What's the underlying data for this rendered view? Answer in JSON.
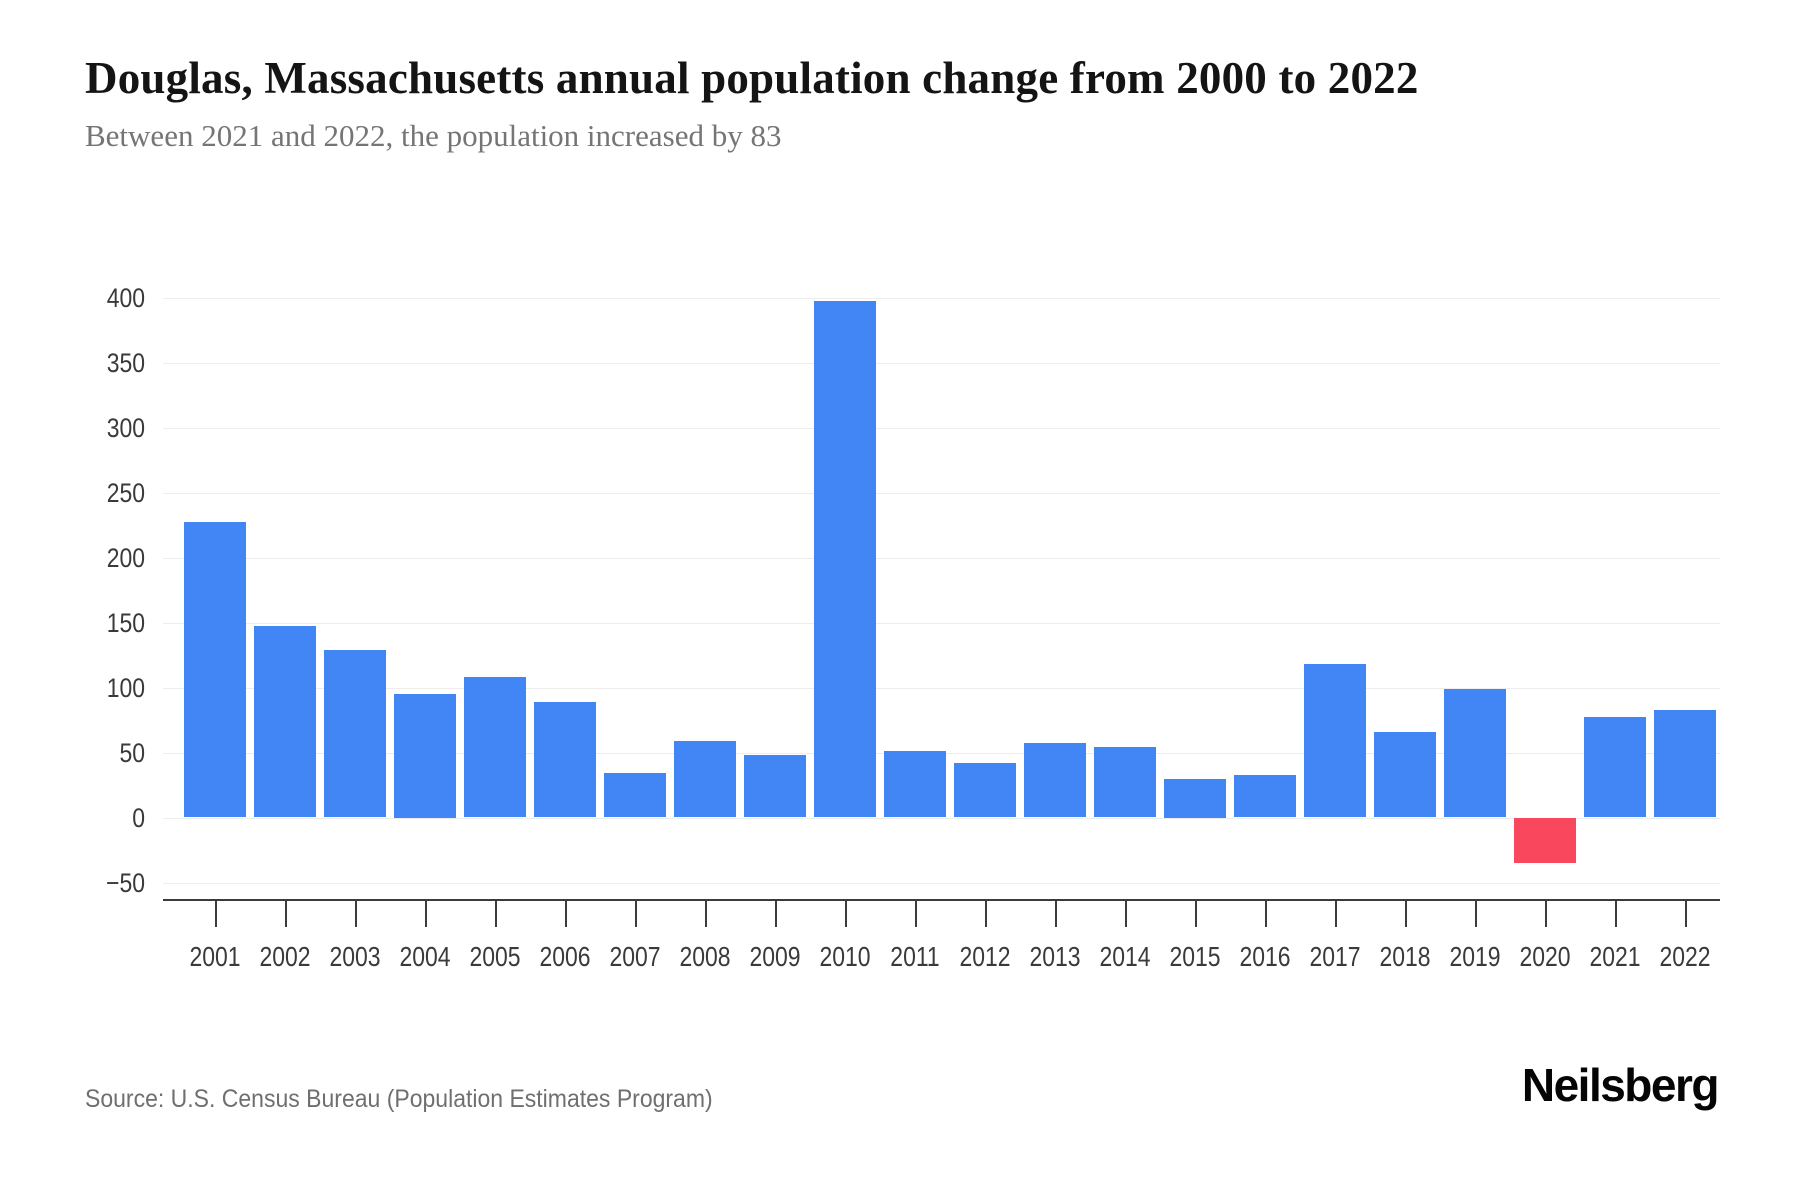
{
  "header": {
    "title": "Douglas, Massachusetts annual population change from 2000 to 2022",
    "subtitle": "Between 2021 and 2022, the population increased by 83"
  },
  "footer": {
    "source": "Source: U.S. Census Bureau (Population Estimates Program)",
    "brand": "Neilsberg"
  },
  "chart_data": {
    "type": "bar",
    "title": "Douglas, Massachusetts annual population change from 2000 to 2022",
    "subtitle": "Between 2021 and 2022, the population increased by 83",
    "categories": [
      "2001",
      "2002",
      "2003",
      "2004",
      "2005",
      "2006",
      "2007",
      "2008",
      "2009",
      "2010",
      "2011",
      "2012",
      "2013",
      "2014",
      "2015",
      "2016",
      "2017",
      "2018",
      "2019",
      "2020",
      "2021",
      "2022"
    ],
    "values": [
      227,
      147,
      129,
      95,
      108,
      89,
      34,
      59,
      48,
      397,
      51,
      42,
      57,
      54,
      30,
      33,
      118,
      66,
      99,
      -35,
      77,
      83
    ],
    "xlabel": "",
    "ylabel": "",
    "ylim": [
      -50,
      400
    ],
    "yticks": [
      400,
      350,
      300,
      250,
      200,
      150,
      100,
      50,
      0,
      -50
    ],
    "grid": true,
    "legend": false,
    "bar_color": "#4285F4",
    "negative_bar_color": "#F9485E"
  }
}
